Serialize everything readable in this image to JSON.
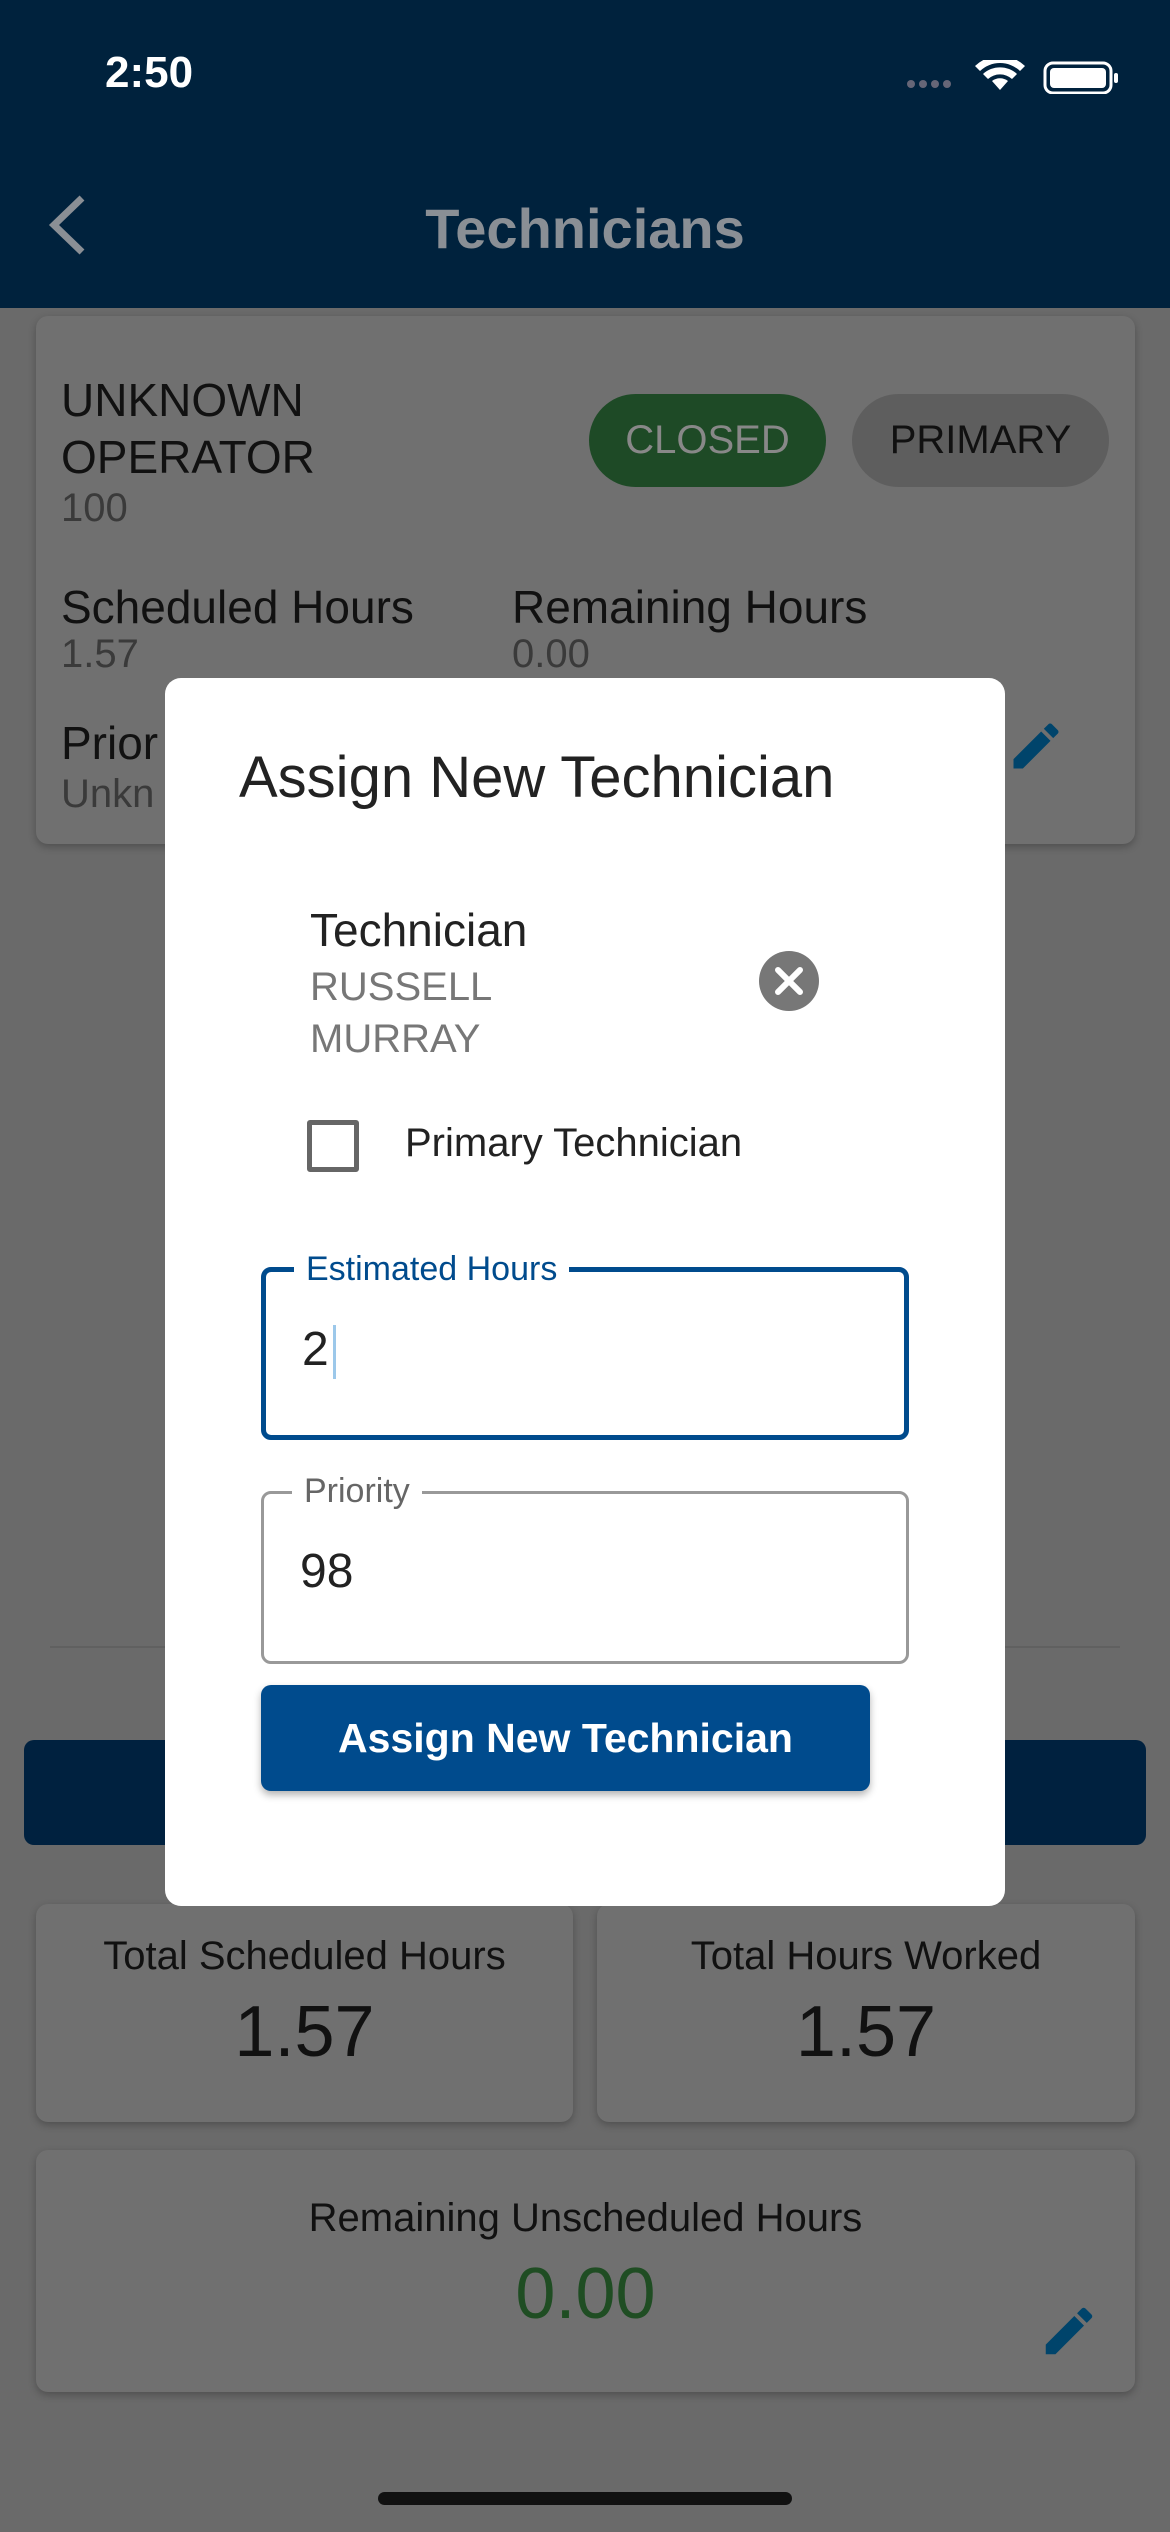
{
  "status_bar": {
    "time": "2:50"
  },
  "header": {
    "title": "Technicians"
  },
  "technician_card": {
    "name_line1": "UNKNOWN",
    "name_line2": "OPERATOR",
    "id": "100",
    "status_chip": "CLOSED",
    "primary_chip": "PRIMARY",
    "scheduled_label": "Scheduled Hours",
    "scheduled_value": "1.57",
    "remaining_label": "Remaining Hours",
    "remaining_value": "0.00",
    "priority_label": "Prior",
    "priority_value": "Unkn"
  },
  "summary": {
    "total_scheduled_label": "Total Scheduled Hours",
    "total_scheduled_value": "1.57",
    "total_worked_label": "Total Hours Worked",
    "total_worked_value": "1.57",
    "remaining_unscheduled_label": "Remaining Unscheduled Hours",
    "remaining_unscheduled_value": "0.00"
  },
  "modal": {
    "title": "Assign New Technician",
    "technician_label": "Technician",
    "technician_line1": "RUSSELL",
    "technician_line2": "MURRAY",
    "primary_label": "Primary Technician",
    "primary_checked": false,
    "estimated_label": "Estimated Hours",
    "estimated_value": "2",
    "priority_label": "Priority",
    "priority_value": "98",
    "assign_button": "Assign New Technician"
  },
  "colors": {
    "header": "#004b88",
    "accent": "#004b8d",
    "closed_chip": "#43a555",
    "positive_value": "#2e7d32"
  }
}
